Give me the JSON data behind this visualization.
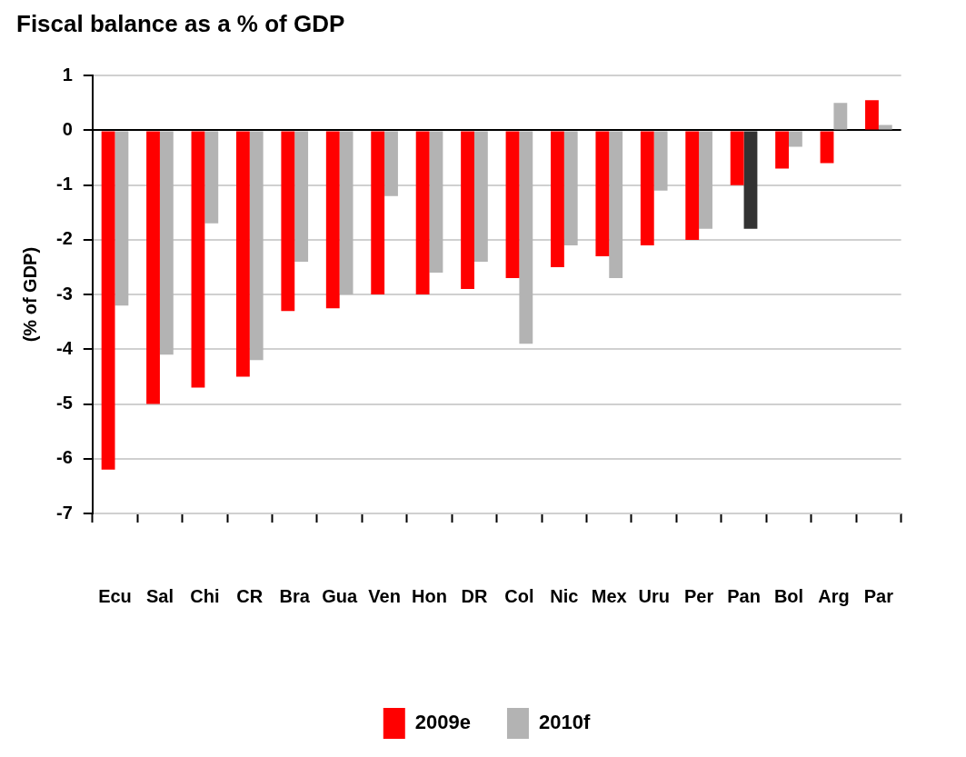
{
  "chart_data": {
    "type": "bar",
    "title": "Fiscal balance as a % of GDP",
    "ylabel": "(% of GDP)",
    "categories": [
      "Ecu",
      "Sal",
      "Chi",
      "CR",
      "Bra",
      "Gua",
      "Ven",
      "Hon",
      "DR",
      "Col",
      "Nic",
      "Mex",
      "Uru",
      "Per",
      "Pan",
      "Bol",
      "Arg",
      "Par"
    ],
    "series": [
      {
        "name": "2009e",
        "color": "#ff0000",
        "values": [
          -6.2,
          -5.0,
          -4.7,
          -4.5,
          -3.3,
          -3.25,
          -3.0,
          -3.0,
          -2.9,
          -2.7,
          -2.5,
          -2.3,
          -2.1,
          -2.0,
          -1.0,
          -0.7,
          -0.6,
          0.55
        ]
      },
      {
        "name": "2010f",
        "color": "#b3b3b3",
        "colors": [
          "#b3b3b3",
          "#b3b3b3",
          "#b3b3b3",
          "#b3b3b3",
          "#b3b3b3",
          "#b3b3b3",
          "#b3b3b3",
          "#b3b3b3",
          "#b3b3b3",
          "#b3b3b3",
          "#b3b3b3",
          "#b3b3b3",
          "#b3b3b3",
          "#b3b3b3",
          "#333333",
          "#b3b3b3",
          "#b3b3b3",
          "#b3b3b3"
        ],
        "values": [
          -3.2,
          -4.1,
          -1.7,
          -4.2,
          -2.4,
          -3.0,
          -1.2,
          -2.6,
          -2.4,
          -3.9,
          -2.1,
          -2.7,
          -1.1,
          -1.8,
          -1.8,
          -0.3,
          0.5,
          0.1
        ]
      }
    ],
    "ylim": [
      -7,
      1
    ],
    "yticks": [
      -7,
      -6,
      -5,
      -4,
      -3,
      -2,
      -1,
      0,
      1
    ],
    "grid": "y",
    "legend": "bottom"
  }
}
